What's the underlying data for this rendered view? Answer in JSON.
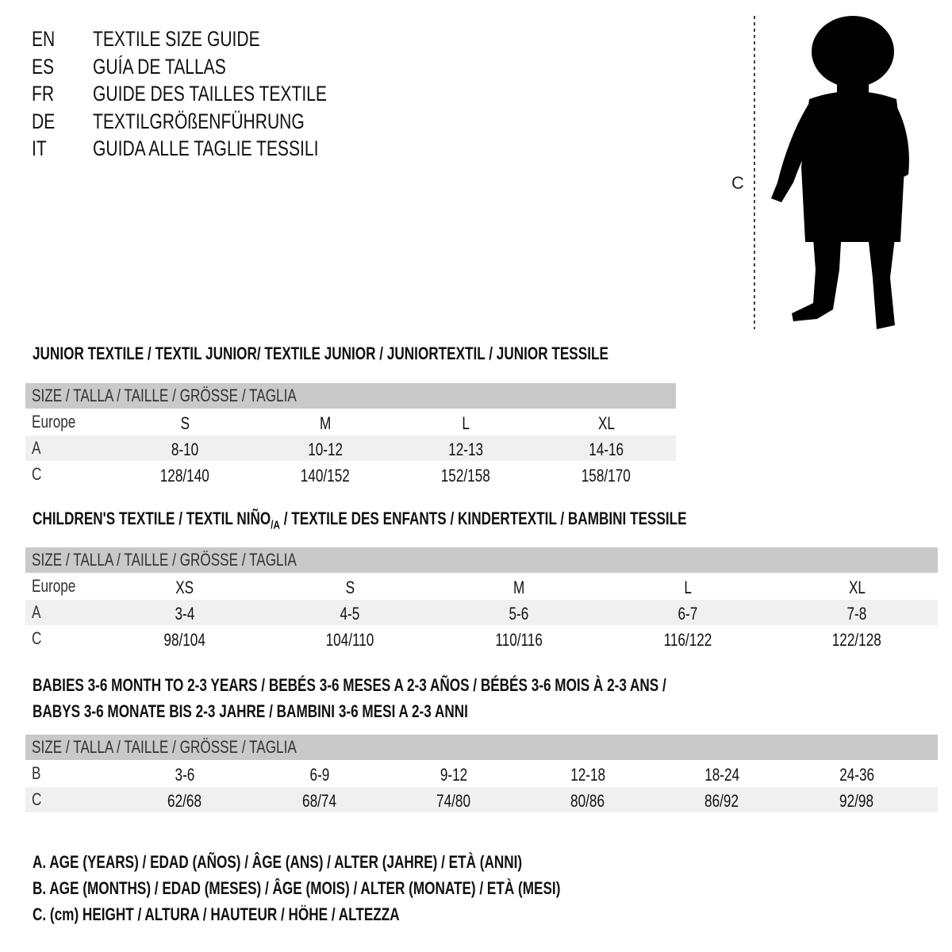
{
  "header": [
    {
      "code": "EN",
      "text": "TEXTILE SIZE GUIDE"
    },
    {
      "code": "ES",
      "text": "GUÍA DE TALLAS"
    },
    {
      "code": "FR",
      "text": "GUIDE DES TAILLES TEXTILE"
    },
    {
      "code": "DE",
      "text": "TEXTILGRÖßENFÜHRUNG"
    },
    {
      "code": "IT",
      "text": "GUIDA ALLE TAGLIE TESSILI"
    }
  ],
  "figure": {
    "label": "C"
  },
  "junior": {
    "title": "JUNIOR TEXTILE / TEXTIL JUNIOR/ TEXTILE JUNIOR / JUNIORTEXTIL / JUNIOR TESSILE",
    "header": "SIZE / TALLA / TAILLE / GRÖSSE / TAGLIA",
    "rows": [
      {
        "label": "Europe",
        "values": [
          "S",
          "M",
          "L",
          "XL"
        ]
      },
      {
        "label": "A",
        "values": [
          "8-10",
          "10-12",
          "12-13",
          "14-16"
        ]
      },
      {
        "label": "C",
        "values": [
          "128/140",
          "140/152",
          "152/158",
          "158/170"
        ]
      }
    ]
  },
  "children": {
    "title_a": "CHILDREN'S TEXTILE / TEXTIL NIÑO",
    "title_sub": "/A",
    "title_b": " / TEXTILE DES ENFANTS / KINDERTEXTIL / BAMBINI TESSILE",
    "header": "SIZE / TALLA / TAILLE / GRÖSSE / TAGLIA",
    "rows": [
      {
        "label": "Europe",
        "values": [
          "XS",
          "S",
          "M",
          "L",
          "XL"
        ]
      },
      {
        "label": "A",
        "values": [
          "3-4",
          "4-5",
          "5-6",
          "6-7",
          "7-8"
        ]
      },
      {
        "label": "C",
        "values": [
          "98/104",
          "104/110",
          "110/116",
          "116/122",
          "122/128"
        ]
      }
    ]
  },
  "babies": {
    "title_line1": "BABIES 3-6 MONTH TO 2-3 YEARS / BEBÉS 3-6 MESES A 2-3 AÑOS / BÉBÉS 3-6 MOIS À 2-3 ANS /",
    "title_line2": "BABYS 3-6 MONATE BIS 2-3 JAHRE / BAMBINI 3-6 MESI A 2-3 ANNI",
    "header": "SIZE / TALLA / TAILLE / GRÖSSE / TAGLIA",
    "rows": [
      {
        "label": "B",
        "values": [
          "3-6",
          "6-9",
          "9-12",
          "12-18",
          "18-24",
          "24-36"
        ]
      },
      {
        "label": "C",
        "values": [
          "62/68",
          "68/74",
          "74/80",
          "80/86",
          "86/92",
          "92/98"
        ]
      }
    ]
  },
  "legend": [
    "A. AGE (YEARS) / EDAD (AÑOS) / ÂGE (ANS) / ALTER (JAHRE) / ETÀ (ANNI)",
    "B. AGE (MONTHS) / EDAD (MESES) / ÂGE (MOIS) / ALTER (MONATE) / ETÀ (MESI)",
    "C. (cm) HEIGHT / ALTURA / HAUTEUR / HÖHE / ALTEZZA"
  ]
}
